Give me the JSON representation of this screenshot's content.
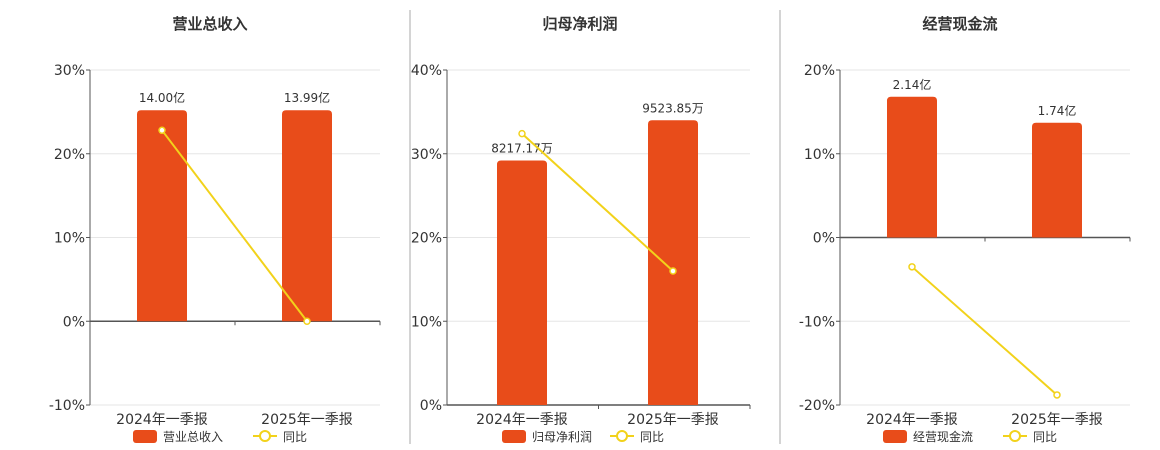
{
  "colors": {
    "bar": "#E84C1A",
    "line": "#F2D21B",
    "grid": "#e6e6e6",
    "axis": "#555555",
    "divider": "#aaaaaa"
  },
  "chart_data": [
    {
      "type": "bar",
      "title": "营业总收入",
      "categories": [
        "2024年一季报",
        "2025年一季报"
      ],
      "series": [
        {
          "name": "营业总收入",
          "type": "bar",
          "values": [
            25.2,
            25.2
          ],
          "labels": [
            "14.00亿",
            "13.99亿"
          ]
        },
        {
          "name": "同比",
          "type": "line",
          "values": [
            22.8,
            0.0
          ]
        }
      ],
      "ylim": [
        -10,
        30
      ],
      "yticks": [
        -10,
        0,
        10,
        20,
        30
      ],
      "ytick_labels": [
        "-10%",
        "0%",
        "10%",
        "20%",
        "30%"
      ],
      "grid": true,
      "legend": "bottom"
    },
    {
      "type": "bar",
      "title": "归母净利润",
      "categories": [
        "2024年一季报",
        "2025年一季报"
      ],
      "series": [
        {
          "name": "归母净利润",
          "type": "bar",
          "values": [
            29.2,
            34.0
          ],
          "labels": [
            "8217.17万",
            "9523.85万"
          ]
        },
        {
          "name": "同比",
          "type": "line",
          "values": [
            32.4,
            16.0
          ]
        }
      ],
      "ylim": [
        0,
        40
      ],
      "yticks": [
        0,
        10,
        20,
        30,
        40
      ],
      "ytick_labels": [
        "0%",
        "10%",
        "20%",
        "30%",
        "40%"
      ],
      "grid": true,
      "legend": "bottom"
    },
    {
      "type": "bar",
      "title": "经营现金流",
      "categories": [
        "2024年一季报",
        "2025年一季报"
      ],
      "series": [
        {
          "name": "经营现金流",
          "type": "bar",
          "values": [
            16.8,
            13.7
          ],
          "labels": [
            "2.14亿",
            "1.74亿"
          ]
        },
        {
          "name": "同比",
          "type": "line",
          "values": [
            -3.5,
            -18.8
          ]
        }
      ],
      "ylim": [
        -20,
        20
      ],
      "yticks": [
        -20,
        -10,
        0,
        10,
        20
      ],
      "ytick_labels": [
        "-20%",
        "-10%",
        "0%",
        "10%",
        "20%"
      ],
      "grid": true,
      "legend": "bottom"
    }
  ]
}
